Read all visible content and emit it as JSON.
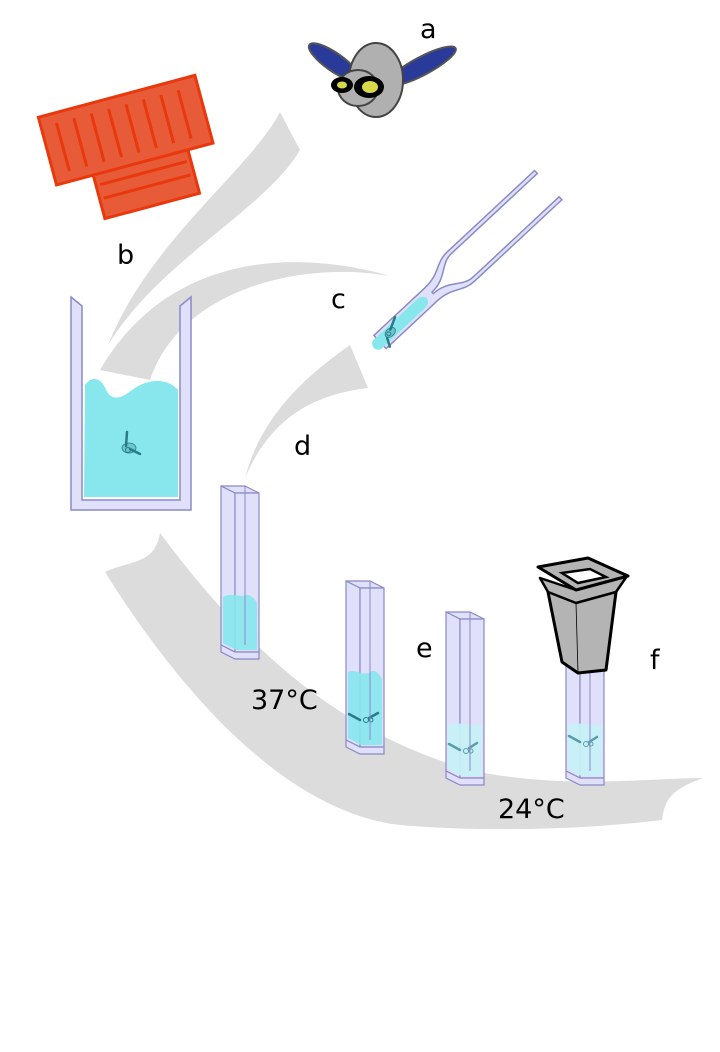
{
  "labels": {
    "a": "a",
    "b": "b",
    "c": "c",
    "d": "d",
    "e": "e",
    "f": "f"
  },
  "temperatures": {
    "warm": "37°C",
    "cool": "24°C"
  },
  "colors": {
    "arrow": "#dcdcdc",
    "liquid": "#87e7ec",
    "liquid_faint": "#c6f2f5",
    "glass_fill": "#e0e0fa",
    "glass_stroke": "#8a8ac8",
    "tray": "#e85b38",
    "tray_edge": "#e8380c",
    "fly_body": "#b0b0b0",
    "fly_wing": "#2a3a9a",
    "fly_eye": "#d8d84a",
    "fly_dark": "#000000",
    "cap": "#b4b4b4",
    "embryo": "#2a7a8a"
  },
  "icons": {
    "fly": "fruit-fly-icon",
    "tray": "egg-collection-tray-icon",
    "beaker": "beaker-icon",
    "pipette": "pipette-icon",
    "cuvette": "cuvette-icon",
    "cap": "cuvette-cap-icon"
  }
}
